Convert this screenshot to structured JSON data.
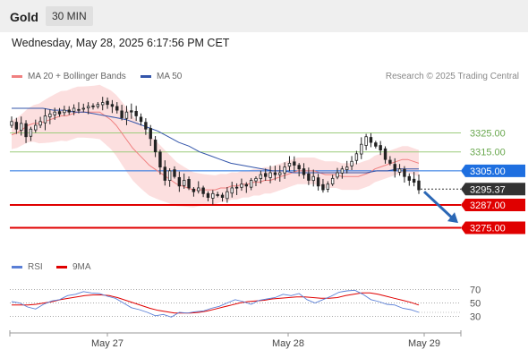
{
  "header": {
    "symbol": "Gold",
    "timeframe": "30 MIN",
    "datetime": "Wednesday, May 28, 2025 6:17:56 PM CET"
  },
  "legend": {
    "ma20": "MA 20 + Bollinger Bands",
    "ma50": "MA 50",
    "credit": "Research © 2025 Trading Central",
    "rsi": "RSI",
    "rsi_ma": "9MA"
  },
  "colors": {
    "candle_up": "#ffffff",
    "candle_down": "#222222",
    "bollinger_fill": "#fbd9d9",
    "ma20": "#f08080",
    "ma50": "#3355aa",
    "support": "#e00000",
    "resistance": "#9ccc7c",
    "pivot": "#1e6fe0",
    "arrow": "#2b67b5",
    "rsi": "#5a7fd6",
    "rsi_ma": "#e00000"
  },
  "chart_data": [
    {
      "type": "candlestick",
      "title": "Gold 30 MIN",
      "ylim": [
        3262,
        3346
      ],
      "x_ticks": [
        "May 27",
        "May 28",
        "May 29"
      ],
      "levels": [
        {
          "name": "3325.00",
          "value": 3325.0,
          "kind": "resistance"
        },
        {
          "name": "3315.00",
          "value": 3315.0,
          "kind": "resistance"
        },
        {
          "name": "3305.00",
          "value": 3305.0,
          "kind": "pivot"
        },
        {
          "name": "3295.37",
          "value": 3295.37,
          "kind": "last"
        },
        {
          "name": "3287.00",
          "value": 3287.0,
          "kind": "support"
        },
        {
          "name": "3275.00",
          "value": 3275.0,
          "kind": "support"
        }
      ],
      "close": [
        3331,
        3327,
        3330,
        3323,
        3327,
        3329,
        3331,
        3334,
        3335,
        3336,
        3335,
        3337,
        3336,
        3338,
        3337,
        3338,
        3339,
        3339,
        3340,
        3341,
        3340,
        3339,
        3337,
        3333,
        3336,
        3336,
        3334,
        3331,
        3327,
        3322,
        3315,
        3307,
        3300,
        3305,
        3302,
        3297,
        3300,
        3296,
        3294,
        3296,
        3293,
        3291,
        3293,
        3292,
        3291,
        3294,
        3296,
        3296,
        3298,
        3297,
        3300,
        3301,
        3303,
        3302,
        3304,
        3303,
        3304,
        3307,
        3309,
        3308,
        3306,
        3303,
        3300,
        3302,
        3297,
        3295,
        3298,
        3301,
        3304,
        3306,
        3307,
        3310,
        3314,
        3319,
        3323,
        3320,
        3318,
        3316,
        3311,
        3309,
        3305,
        3306,
        3302,
        3300,
        3299,
        3295
      ],
      "ma20": [
        3324,
        3325,
        3327,
        3329,
        3330,
        3330,
        3331,
        3332,
        3333,
        3334,
        3334,
        3335,
        3336,
        3336,
        3336,
        3336,
        3336,
        3334,
        3332,
        3329,
        3325,
        3321,
        3317,
        3314,
        3311,
        3308,
        3306,
        3304,
        3302,
        3300,
        3298,
        3297,
        3296,
        3295,
        3295,
        3295,
        3295,
        3295,
        3296,
        3296,
        3297,
        3297,
        3298,
        3298,
        3299,
        3299,
        3300,
        3300,
        3301,
        3302,
        3303,
        3304,
        3305,
        3305,
        3305,
        3305,
        3304,
        3303,
        3303,
        3303,
        3302,
        3302,
        3302,
        3302,
        3303,
        3304,
        3306,
        3307,
        3308,
        3309,
        3310,
        3311,
        3311,
        3310,
        3309
      ],
      "ma50": [
        3338,
        3338,
        3338,
        3338,
        3337,
        3337,
        3336,
        3336,
        3335,
        3334,
        3333,
        3332,
        3330,
        3328,
        3326,
        3323,
        3320,
        3318,
        3315,
        3313,
        3311,
        3309,
        3308,
        3307,
        3306,
        3305,
        3305,
        3304,
        3304,
        3304,
        3304,
        3304,
        3304,
        3304,
        3304,
        3305,
        3305,
        3306,
        3306,
        3306
      ],
      "rsi_ylim": [
        20,
        80
      ],
      "rsi_ticks": [
        70,
        50,
        30
      ],
      "rsi": [
        52,
        50,
        44,
        41,
        48,
        53,
        55,
        61,
        63,
        67,
        65,
        64,
        60,
        57,
        50,
        43,
        40,
        36,
        31,
        33,
        29,
        36,
        35,
        37,
        38,
        42,
        45,
        50,
        55,
        52,
        48,
        54,
        56,
        58,
        63,
        61,
        64,
        55,
        50,
        55,
        60,
        66,
        68,
        69,
        63,
        55,
        52,
        48,
        47,
        42,
        40,
        36
      ],
      "rsi_ma": [
        47,
        47,
        47,
        48,
        50,
        52,
        55,
        57,
        59,
        61,
        62,
        62,
        61,
        58,
        54,
        50,
        46,
        42,
        39,
        37,
        35,
        35,
        35,
        36,
        38,
        41,
        44,
        47,
        50,
        52,
        53,
        54,
        56,
        57,
        58,
        59,
        59,
        58,
        57,
        57,
        58,
        61,
        63,
        65,
        65,
        63,
        60,
        57,
        54,
        51,
        47
      ]
    }
  ]
}
